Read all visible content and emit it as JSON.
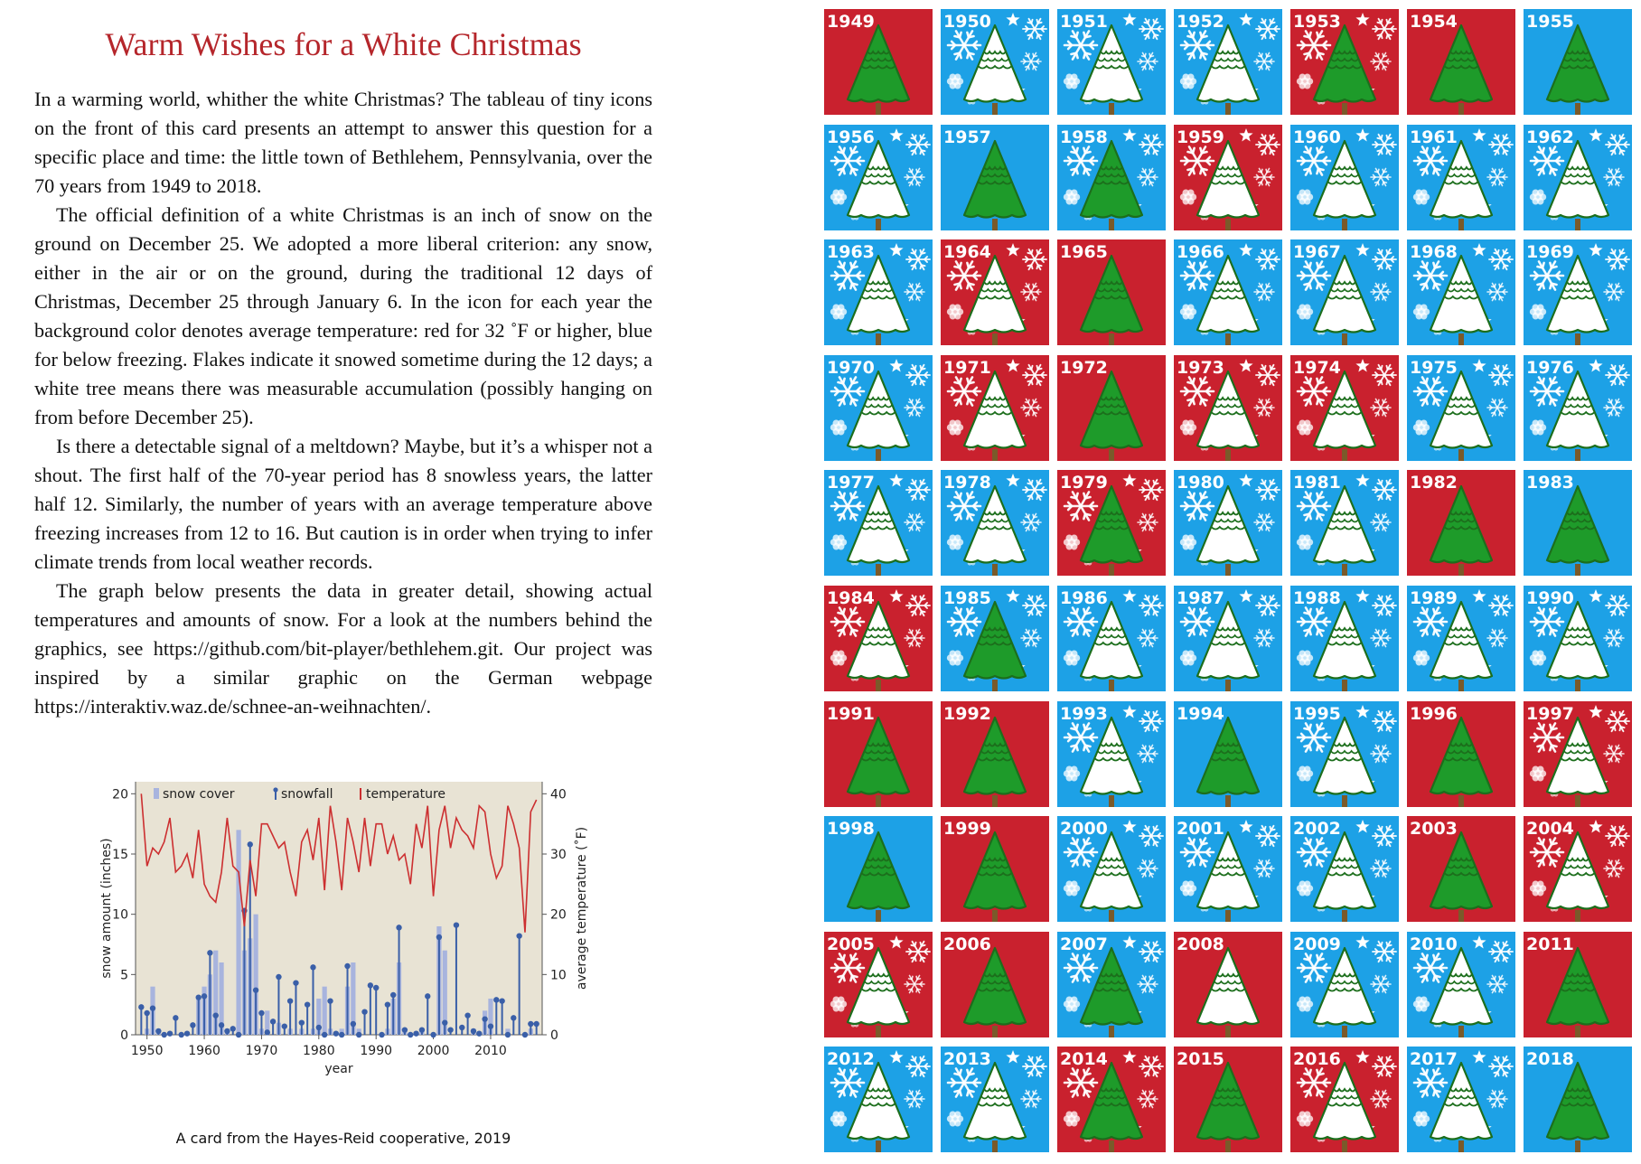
{
  "card": {
    "title": "Warm Wishes for a White Christmas",
    "paragraphs": [
      "In a warming world, whither the white Christmas? The tableau of tiny icons on the front of this card presents an attempt to answer this question for a specific place and time: the little town of Bethlehem, Pennsylvania, over the 70 years from 1949 to 2018.",
      "The official definition of a white Christmas is an inch of snow on the ground on December 25. We adopted a more liberal criterion: any snow, either in the air or on the ground, during the traditional 12 days of Christmas, December 25 through January 6. In the icon for each year the background color denotes average temperature: red for 32 ˚F or higher, blue for below freezing. Flakes indicate it snowed sometime during the 12 days; a white tree means there was measurable accumulation (possibly hanging on from before December 25).",
      "Is there a detectable signal of a meltdown? Maybe, but it’s a whisper not a shout. The first half of the 70-year period has 8 snowless years, the latter half 12. Similarly, the number of years with an average temperature above freezing increases from 12 to 16. But caution is in order when trying to infer climate trends from local weather records.",
      "The graph below presents the data in greater detail, showing actual temperatures and amounts of snow. For a look at the numbers behind the graphics, see https://github.com/bit-player/bethlehem.git. Our project was inspired by a similar graphic on the German webpage https://interaktiv.waz.de/schnee-an-weihnachten/."
    ],
    "caption": "A card from the Hayes-Reid cooperative, 2019"
  },
  "colors": {
    "red": "#c9212e",
    "blue": "#1da1e6",
    "green": "#1e9b2a",
    "title": "#b5262b",
    "plot_bg": "#e8e3d4",
    "snowfall": "#3a5fa8",
    "snowcover": "#a8b4de",
    "temperature": "#cc2f30"
  },
  "icon_names": [
    "snowflake-icon",
    "star-icon",
    "tree-icon"
  ],
  "chart_data": {
    "type": "bar",
    "xlabel": "year",
    "ylabel": "snow amount (inches)",
    "y2label": "average temperature (˚F)",
    "xlim": [
      1948,
      2019
    ],
    "ylim": [
      0,
      21
    ],
    "y2lim": [
      0,
      42
    ],
    "xticks": [
      1950,
      1960,
      1970,
      1980,
      1990,
      2000,
      2010
    ],
    "yticks": [
      0,
      5,
      10,
      15,
      20
    ],
    "y2ticks": [
      0,
      10,
      20,
      30,
      40
    ],
    "legend": [
      "snow cover",
      "snowfall",
      "temperature"
    ],
    "legend_position": "top",
    "x": [
      1949,
      1950,
      1951,
      1952,
      1953,
      1954,
      1955,
      1956,
      1957,
      1958,
      1959,
      1960,
      1961,
      1962,
      1963,
      1964,
      1965,
      1966,
      1967,
      1968,
      1969,
      1970,
      1971,
      1972,
      1973,
      1974,
      1975,
      1976,
      1977,
      1978,
      1979,
      1980,
      1981,
      1982,
      1983,
      1984,
      1985,
      1986,
      1987,
      1988,
      1989,
      1990,
      1991,
      1992,
      1993,
      1994,
      1995,
      1996,
      1997,
      1998,
      1999,
      2000,
      2001,
      2002,
      2003,
      2004,
      2005,
      2006,
      2007,
      2008,
      2009,
      2010,
      2011,
      2012,
      2013,
      2014,
      2015,
      2016,
      2017,
      2018
    ],
    "series": [
      {
        "name": "snow cover",
        "values": [
          0,
          0.5,
          4,
          0.5,
          0,
          0,
          0,
          0,
          0,
          0,
          3,
          4,
          5,
          7,
          6,
          0.5,
          0,
          17,
          7,
          8,
          10,
          0.5,
          2,
          0,
          1,
          0,
          0.5,
          0,
          0.5,
          0,
          0.5,
          3,
          4,
          0.5,
          0,
          0.5,
          4,
          6,
          0.5,
          0,
          0,
          0,
          0,
          0.5,
          3,
          6,
          0.5,
          0,
          0,
          0.5,
          0,
          0,
          9,
          7,
          0,
          0,
          0,
          0,
          0.5,
          0,
          2,
          3,
          0,
          0,
          0.5,
          0,
          0,
          0,
          0.5,
          0
        ]
      },
      {
        "name": "snowfall",
        "values": [
          2.3,
          1.8,
          2.2,
          0.3,
          0,
          0.1,
          1.4,
          0,
          0.1,
          0.8,
          3.1,
          3.2,
          6.8,
          1.6,
          0.8,
          0.3,
          0.5,
          0,
          10.3,
          15.8,
          3.7,
          1.8,
          0.2,
          1.1,
          4.8,
          0.7,
          2.8,
          4.3,
          1,
          2.5,
          5.6,
          0.6,
          0,
          2.8,
          0.1,
          0,
          5.7,
          0.9,
          0,
          1.9,
          4.1,
          3.9,
          0,
          2.5,
          3.3,
          8.9,
          0.4,
          0,
          0.1,
          0.4,
          3.2,
          0,
          8.1,
          1,
          0.4,
          9.1,
          0.6,
          1.6,
          0.3,
          0.1,
          1.3,
          0.7,
          2.9,
          2.8,
          0,
          1.4,
          8.2,
          0,
          0.9,
          0.9
        ]
      },
      {
        "name": "temperature",
        "values": [
          40,
          28,
          31,
          30,
          32,
          36,
          27,
          28,
          30,
          26,
          34,
          25,
          23,
          22,
          27,
          36,
          28,
          27,
          18,
          29,
          23,
          35,
          35,
          33,
          31,
          32,
          27,
          23,
          32,
          34,
          29,
          36,
          24,
          38,
          32,
          24,
          36,
          32,
          27,
          36,
          28,
          35,
          35,
          30,
          33,
          29,
          30,
          25,
          35,
          31,
          38,
          23,
          34,
          38,
          31,
          36,
          34,
          33,
          31,
          38,
          37,
          30,
          26,
          28,
          38,
          35,
          31,
          17,
          37,
          39
        ]
      }
    ]
  },
  "tiles": [
    {
      "year": "1949",
      "bg": "red",
      "tree": "green",
      "flakes": false
    },
    {
      "year": "1950",
      "bg": "blue",
      "tree": "white",
      "flakes": true
    },
    {
      "year": "1951",
      "bg": "blue",
      "tree": "white",
      "flakes": true
    },
    {
      "year": "1952",
      "bg": "blue",
      "tree": "white",
      "flakes": true
    },
    {
      "year": "1953",
      "bg": "red",
      "tree": "green",
      "flakes": true
    },
    {
      "year": "1954",
      "bg": "red",
      "tree": "green",
      "flakes": false
    },
    {
      "year": "1955",
      "bg": "blue",
      "tree": "green",
      "flakes": false
    },
    {
      "year": "1956",
      "bg": "blue",
      "tree": "white",
      "flakes": true
    },
    {
      "year": "1957",
      "bg": "blue",
      "tree": "green",
      "flakes": false
    },
    {
      "year": "1958",
      "bg": "blue",
      "tree": "green",
      "flakes": true
    },
    {
      "year": "1959",
      "bg": "red",
      "tree": "white",
      "flakes": true
    },
    {
      "year": "1960",
      "bg": "blue",
      "tree": "white",
      "flakes": true
    },
    {
      "year": "1961",
      "bg": "blue",
      "tree": "white",
      "flakes": true
    },
    {
      "year": "1962",
      "bg": "blue",
      "tree": "white",
      "flakes": true
    },
    {
      "year": "1963",
      "bg": "blue",
      "tree": "white",
      "flakes": true
    },
    {
      "year": "1964",
      "bg": "red",
      "tree": "white",
      "flakes": true
    },
    {
      "year": "1965",
      "bg": "red",
      "tree": "green",
      "flakes": false
    },
    {
      "year": "1966",
      "bg": "blue",
      "tree": "white",
      "flakes": true
    },
    {
      "year": "1967",
      "bg": "blue",
      "tree": "white",
      "flakes": true
    },
    {
      "year": "1968",
      "bg": "blue",
      "tree": "white",
      "flakes": true
    },
    {
      "year": "1969",
      "bg": "blue",
      "tree": "white",
      "flakes": true
    },
    {
      "year": "1970",
      "bg": "blue",
      "tree": "white",
      "flakes": true
    },
    {
      "year": "1971",
      "bg": "red",
      "tree": "white",
      "flakes": true
    },
    {
      "year": "1972",
      "bg": "red",
      "tree": "green",
      "flakes": false
    },
    {
      "year": "1973",
      "bg": "red",
      "tree": "white",
      "flakes": true
    },
    {
      "year": "1974",
      "bg": "red",
      "tree": "white",
      "flakes": true
    },
    {
      "year": "1975",
      "bg": "blue",
      "tree": "white",
      "flakes": true
    },
    {
      "year": "1976",
      "bg": "blue",
      "tree": "white",
      "flakes": true
    },
    {
      "year": "1977",
      "bg": "blue",
      "tree": "white",
      "flakes": true
    },
    {
      "year": "1978",
      "bg": "blue",
      "tree": "white",
      "flakes": true
    },
    {
      "year": "1979",
      "bg": "red",
      "tree": "green",
      "flakes": true
    },
    {
      "year": "1980",
      "bg": "blue",
      "tree": "white",
      "flakes": true
    },
    {
      "year": "1981",
      "bg": "blue",
      "tree": "white",
      "flakes": true
    },
    {
      "year": "1982",
      "bg": "red",
      "tree": "green",
      "flakes": false
    },
    {
      "year": "1983",
      "bg": "blue",
      "tree": "green",
      "flakes": false
    },
    {
      "year": "1984",
      "bg": "red",
      "tree": "white",
      "flakes": true
    },
    {
      "year": "1985",
      "bg": "blue",
      "tree": "green",
      "flakes": true
    },
    {
      "year": "1986",
      "bg": "blue",
      "tree": "white",
      "flakes": true
    },
    {
      "year": "1987",
      "bg": "blue",
      "tree": "white",
      "flakes": true
    },
    {
      "year": "1988",
      "bg": "blue",
      "tree": "white",
      "flakes": true
    },
    {
      "year": "1989",
      "bg": "blue",
      "tree": "white",
      "flakes": true
    },
    {
      "year": "1990",
      "bg": "blue",
      "tree": "white",
      "flakes": true
    },
    {
      "year": "1991",
      "bg": "red",
      "tree": "green",
      "flakes": false
    },
    {
      "year": "1992",
      "bg": "red",
      "tree": "green",
      "flakes": false
    },
    {
      "year": "1993",
      "bg": "blue",
      "tree": "white",
      "flakes": true
    },
    {
      "year": "1994",
      "bg": "blue",
      "tree": "green",
      "flakes": false
    },
    {
      "year": "1995",
      "bg": "blue",
      "tree": "white",
      "flakes": true
    },
    {
      "year": "1996",
      "bg": "red",
      "tree": "green",
      "flakes": false
    },
    {
      "year": "1997",
      "bg": "red",
      "tree": "white",
      "flakes": true
    },
    {
      "year": "1998",
      "bg": "blue",
      "tree": "green",
      "flakes": false
    },
    {
      "year": "1999",
      "bg": "red",
      "tree": "green",
      "flakes": false
    },
    {
      "year": "2000",
      "bg": "blue",
      "tree": "white",
      "flakes": true
    },
    {
      "year": "2001",
      "bg": "blue",
      "tree": "white",
      "flakes": true
    },
    {
      "year": "2002",
      "bg": "blue",
      "tree": "white",
      "flakes": true
    },
    {
      "year": "2003",
      "bg": "red",
      "tree": "green",
      "flakes": false
    },
    {
      "year": "2004",
      "bg": "red",
      "tree": "white",
      "flakes": true
    },
    {
      "year": "2005",
      "bg": "red",
      "tree": "white",
      "flakes": true
    },
    {
      "year": "2006",
      "bg": "red",
      "tree": "green",
      "flakes": false
    },
    {
      "year": "2007",
      "bg": "blue",
      "tree": "green",
      "flakes": true
    },
    {
      "year": "2008",
      "bg": "red",
      "tree": "white",
      "flakes": false
    },
    {
      "year": "2009",
      "bg": "blue",
      "tree": "white",
      "flakes": true
    },
    {
      "year": "2010",
      "bg": "blue",
      "tree": "white",
      "flakes": true
    },
    {
      "year": "2011",
      "bg": "red",
      "tree": "green",
      "flakes": false
    },
    {
      "year": "2012",
      "bg": "blue",
      "tree": "white",
      "flakes": true
    },
    {
      "year": "2013",
      "bg": "blue",
      "tree": "white",
      "flakes": true
    },
    {
      "year": "2014",
      "bg": "red",
      "tree": "green",
      "flakes": true
    },
    {
      "year": "2015",
      "bg": "red",
      "tree": "green",
      "flakes": false
    },
    {
      "year": "2016",
      "bg": "red",
      "tree": "white",
      "flakes": true
    },
    {
      "year": "2017",
      "bg": "blue",
      "tree": "white",
      "flakes": true
    },
    {
      "year": "2018",
      "bg": "blue",
      "tree": "green",
      "flakes": false
    }
  ]
}
